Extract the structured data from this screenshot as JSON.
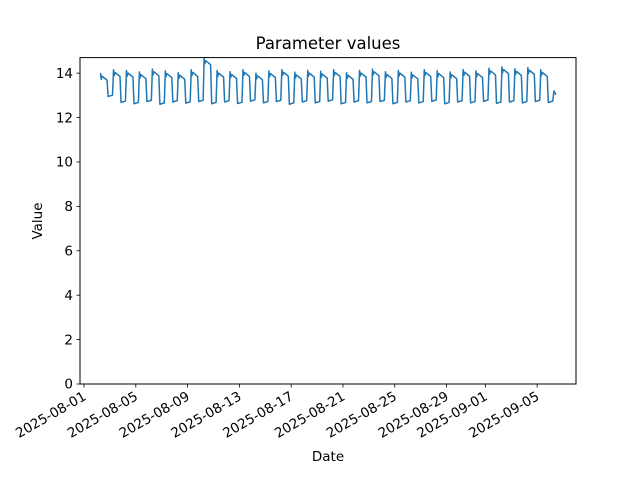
{
  "figure": {
    "title": "Parameter values",
    "xlabel": "Date",
    "ylabel": "Value"
  },
  "chart_data": {
    "type": "line",
    "title": "Parameter values",
    "xlabel": "Date",
    "ylabel": "Value",
    "grid": false,
    "legend": null,
    "line_color": "#1f77b4",
    "line_width": 1.5,
    "background_color": "#ffffff",
    "spine_color": "#000000",
    "ylim": [
      0,
      14.7
    ],
    "y_ticks": [
      0,
      2,
      4,
      6,
      8,
      10,
      12,
      14
    ],
    "x_axis_origin_date": "2025-08-01",
    "xlim_days": [
      -0.31,
      38.0
    ],
    "x_ticks": [
      {
        "label": "2025-08-01",
        "day": 0
      },
      {
        "label": "2025-08-05",
        "day": 4
      },
      {
        "label": "2025-08-09",
        "day": 8
      },
      {
        "label": "2025-08-13",
        "day": 12
      },
      {
        "label": "2025-08-17",
        "day": 16
      },
      {
        "label": "2025-08-21",
        "day": 20
      },
      {
        "label": "2025-08-25",
        "day": 24
      },
      {
        "label": "2025-08-29",
        "day": 28
      },
      {
        "label": "2025-09-01",
        "day": 31
      },
      {
        "label": "2025-09-05",
        "day": 35
      }
    ],
    "series": [
      {
        "name": "parameter-values",
        "description": "Daily square-wave oscillation: high plateau ~13.9-14.3 for ~0.55 day, sharp dip to low ~12.6-12.95 for ~0.35 day. Anomalous spike to 14.68 on 2025-08-10. Data spans 2025-08-02 ~07:00 to 2025-09-06 ~10:00.",
        "waveform_offsets": [
          [
            0.28,
            "peak",
            0
          ],
          [
            0.33,
            "peak",
            -0.26
          ],
          [
            0.4,
            "peak",
            -0.12
          ],
          [
            0.78,
            "peak",
            -0.3
          ],
          [
            0.86,
            "low",
            0
          ],
          [
            1.2,
            "low",
            0.06
          ]
        ],
        "cycles_day_peak_low": [
          [
            1,
            13.98,
            12.95
          ],
          [
            2,
            14.15,
            12.68
          ],
          [
            3,
            14.12,
            12.62
          ],
          [
            4,
            14.05,
            12.72
          ],
          [
            5,
            14.18,
            12.6
          ],
          [
            6,
            14.1,
            12.7
          ],
          [
            7,
            14.02,
            12.65
          ],
          [
            8,
            14.15,
            12.72
          ],
          [
            9,
            14.68,
            12.62
          ],
          [
            10,
            14.12,
            12.7
          ],
          [
            11,
            14.06,
            12.63
          ],
          [
            12,
            14.15,
            12.74
          ],
          [
            13,
            14.0,
            12.66
          ],
          [
            14,
            14.1,
            12.72
          ],
          [
            15,
            14.16,
            12.6
          ],
          [
            16,
            14.04,
            12.7
          ],
          [
            17,
            14.12,
            12.66
          ],
          [
            18,
            14.08,
            12.74
          ],
          [
            19,
            14.15,
            12.62
          ],
          [
            20,
            14.02,
            12.7
          ],
          [
            21,
            14.12,
            12.66
          ],
          [
            22,
            14.18,
            12.72
          ],
          [
            23,
            14.06,
            12.62
          ],
          [
            24,
            14.12,
            12.7
          ],
          [
            25,
            14.04,
            12.66
          ],
          [
            26,
            14.15,
            12.73
          ],
          [
            27,
            14.1,
            12.62
          ],
          [
            28,
            14.05,
            12.7
          ],
          [
            29,
            14.16,
            12.66
          ],
          [
            30,
            14.1,
            12.73
          ],
          [
            31,
            14.22,
            12.64
          ],
          [
            32,
            14.28,
            12.7
          ],
          [
            33,
            14.2,
            12.66
          ],
          [
            34,
            14.25,
            12.72
          ],
          [
            35,
            14.15,
            12.68
          ]
        ],
        "tail_points_day_value": [
          [
            36.3,
            13.2
          ],
          [
            36.42,
            13.05
          ]
        ]
      }
    ]
  }
}
